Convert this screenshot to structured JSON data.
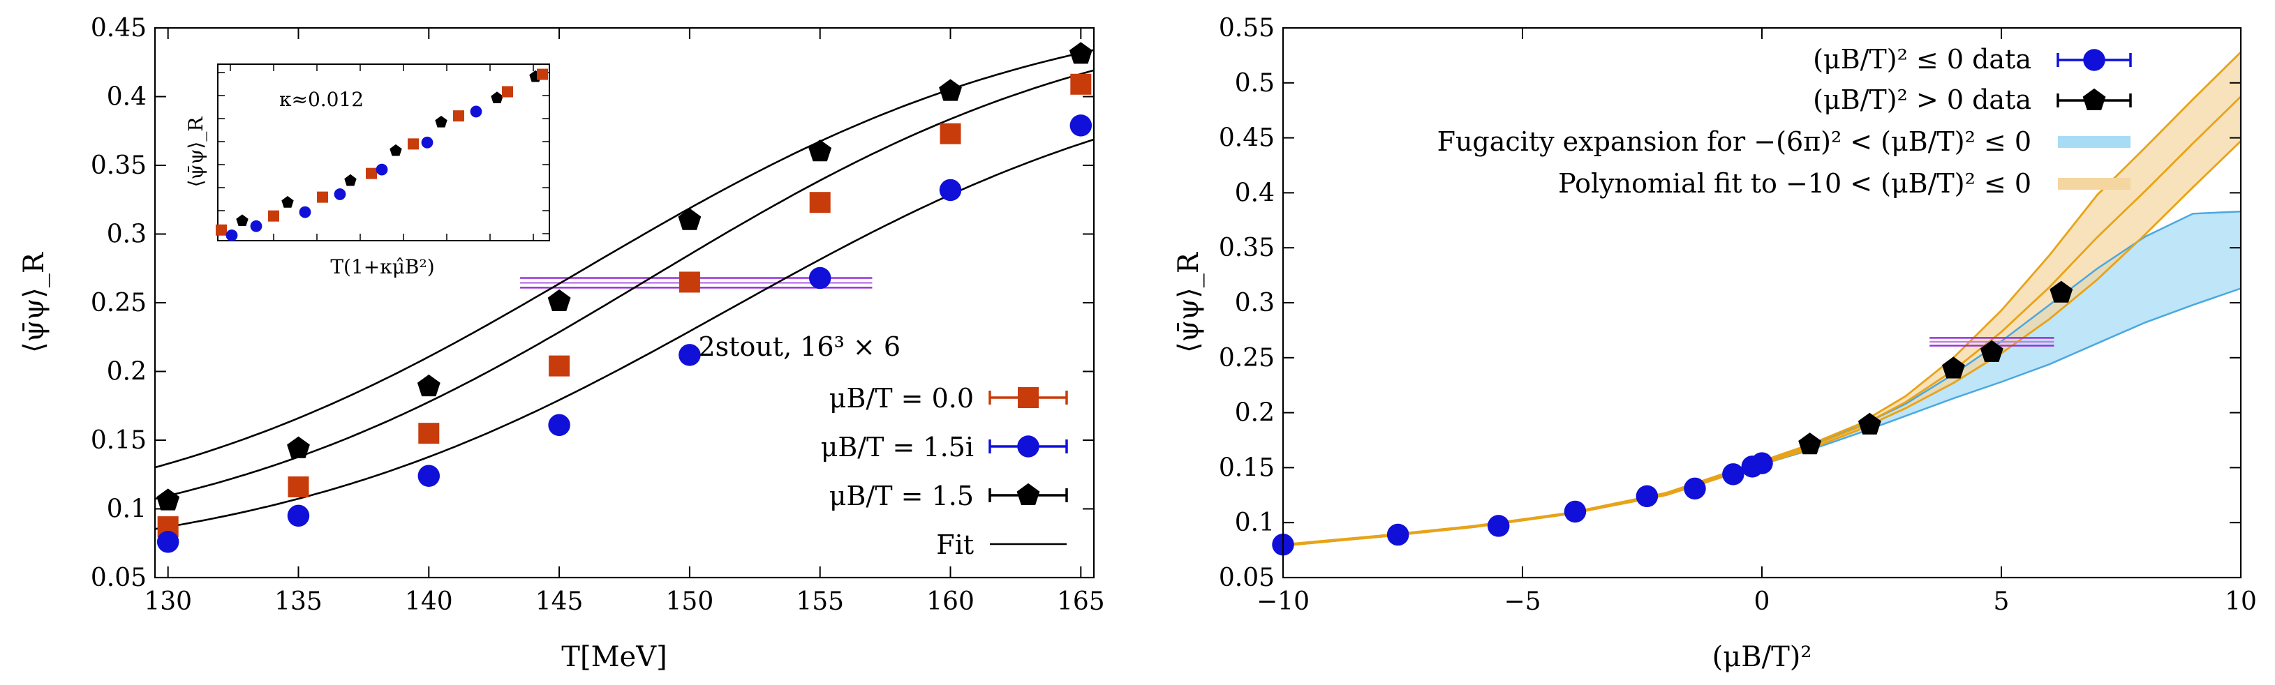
{
  "colors": {
    "orange": "#c83c0c",
    "blue": "#1010d8",
    "black": "#000000",
    "purple": "#9b30d9",
    "fit_line": "#000000",
    "gold": "#e8a317",
    "band_orange": "#f5d6a0",
    "band_blue": "#a8dcf5",
    "line_blue": "#4aa8e0"
  },
  "chart_data": [
    {
      "type": "line",
      "panel": "left",
      "xlabel": "T[MeV]",
      "ylabel": "⟨ψ̄ψ⟩_R",
      "xlim": [
        129.5,
        165.5
      ],
      "ylim": [
        0.05,
        0.45
      ],
      "xticks": [
        130,
        135,
        140,
        145,
        150,
        155,
        160,
        165
      ],
      "xtick_labels": [
        "130",
        "135",
        "140",
        "145",
        "150",
        "155",
        "160",
        "165"
      ],
      "yticks": [
        0.05,
        0.1,
        0.15,
        0.2,
        0.25,
        0.3,
        0.35,
        0.4,
        0.45
      ],
      "ytick_labels": [
        "0.05",
        "0.1",
        "0.15",
        "0.2",
        "0.25",
        "0.3",
        "0.35",
        "0.4",
        "0.45"
      ],
      "legend_title": "2stout, 16³ × 6",
      "legend_position": "right",
      "series": [
        {
          "name": "μB/T = 0.0",
          "marker": "square",
          "color": "orange",
          "x": [
            130,
            135,
            140,
            145,
            150,
            155,
            160,
            165
          ],
          "y": [
            0.087,
            0.116,
            0.155,
            0.204,
            0.265,
            0.323,
            0.373,
            0.409
          ]
        },
        {
          "name": "μB/T = 1.5i",
          "marker": "circle",
          "color": "blue",
          "x": [
            130,
            135,
            140,
            145,
            150,
            155,
            160,
            165
          ],
          "y": [
            0.076,
            0.095,
            0.124,
            0.161,
            0.212,
            0.268,
            0.332,
            0.379
          ]
        },
        {
          "name": "μB/T = 1.5",
          "marker": "pentagon",
          "color": "black",
          "x": [
            130,
            135,
            140,
            145,
            150,
            155,
            160,
            165
          ],
          "y": [
            0.106,
            0.144,
            0.189,
            0.251,
            0.31,
            0.36,
            0.404,
            0.431
          ]
        },
        {
          "name": "Fit",
          "marker": "line",
          "color": "black"
        }
      ],
      "fits": [
        {
          "A": 0.063,
          "B": 0.41,
          "T0": 148.5,
          "w": 9.0
        },
        {
          "A": 0.055,
          "B": 0.38,
          "T0": 151.5,
          "w": 9.0
        },
        {
          "A": 0.075,
          "B": 0.4,
          "T0": 146.0,
          "w": 9.0
        }
      ],
      "ref_band": {
        "xmin": 143.5,
        "xmax": 157.0,
        "ylo": 0.261,
        "yhi": 0.268
      },
      "inset": {
        "xlabel": "T(1+κμ̂B²)",
        "ylabel": "⟨ψ̄ψ⟩_R",
        "annotation": "κ≈0.012",
        "x": [
          0.0,
          0.3,
          0.6,
          1.0,
          1.5,
          1.9,
          2.4,
          2.9,
          3.4,
          3.7,
          4.3,
          4.6,
          5.0,
          5.5,
          5.9,
          6.3,
          6.8,
          7.3,
          7.9,
          8.2,
          9.0,
          9.2
        ],
        "y": [
          0.087,
          0.076,
          0.106,
          0.095,
          0.116,
          0.144,
          0.124,
          0.155,
          0.161,
          0.189,
          0.204,
          0.212,
          0.251,
          0.265,
          0.268,
          0.31,
          0.323,
          0.332,
          0.36,
          0.373,
          0.404,
          0.409
        ],
        "kind": [
          "square",
          "circle",
          "pentagon",
          "circle",
          "square",
          "pentagon",
          "circle",
          "square",
          "circle",
          "pentagon",
          "square",
          "circle",
          "pentagon",
          "square",
          "circle",
          "pentagon",
          "square",
          "circle",
          "pentagon",
          "square",
          "pentagon",
          "square"
        ]
      }
    },
    {
      "type": "line",
      "panel": "right",
      "xlabel": "(μB/T)²",
      "ylabel": "⟨ψ̄ψ⟩_R",
      "xlim": [
        -10,
        10
      ],
      "ylim": [
        0.05,
        0.55
      ],
      "xticks": [
        -10,
        -5,
        0,
        5,
        10
      ],
      "xtick_labels": [
        "−10",
        "−5",
        "0",
        "5",
        "10"
      ],
      "yticks": [
        0.05,
        0.1,
        0.15,
        0.2,
        0.25,
        0.3,
        0.35,
        0.4,
        0.45,
        0.5,
        0.55
      ],
      "ytick_labels": [
        "0.05",
        "0.1",
        "0.15",
        "0.2",
        "0.25",
        "0.3",
        "0.35",
        "0.4",
        "0.45",
        "0.5",
        "0.55"
      ],
      "legend_position": "top-right",
      "series": [
        {
          "name": "(μB/T)² ≤ 0 data",
          "marker": "circle",
          "color": "blue",
          "x": [
            -10.0,
            -7.6,
            -5.5,
            -3.9,
            -2.4,
            -1.4,
            -0.6,
            -0.2,
            0.0
          ],
          "y": [
            0.08,
            0.089,
            0.097,
            0.11,
            0.124,
            0.131,
            0.144,
            0.151,
            0.154
          ]
        },
        {
          "name": "(μB/T)² > 0 data",
          "marker": "pentagon",
          "color": "black",
          "x": [
            1.0,
            2.25,
            4.0,
            4.8,
            6.25
          ],
          "y": [
            0.171,
            0.189,
            0.24,
            0.255,
            0.309
          ]
        },
        {
          "name": "Fugacity expansion for −(6π)² < (μB/T)² ≤ 0",
          "marker": "band",
          "color": "band_blue"
        },
        {
          "name": "Polynomial fit to −10 < (μB/T)² ≤ 0",
          "marker": "band",
          "color": "band_orange"
        }
      ],
      "bands": {
        "x": [
          -10,
          -8,
          -6,
          -4,
          -2,
          0,
          1,
          2,
          3,
          4,
          5,
          6,
          7,
          8,
          9,
          10
        ],
        "orange_lo": [
          0.079,
          0.087,
          0.096,
          0.108,
          0.125,
          0.153,
          0.167,
          0.184,
          0.204,
          0.227,
          0.254,
          0.285,
          0.321,
          0.362,
          0.405,
          0.447
        ],
        "orange_hi": [
          0.08,
          0.088,
          0.097,
          0.109,
          0.127,
          0.156,
          0.171,
          0.189,
          0.215,
          0.25,
          0.293,
          0.343,
          0.398,
          0.441,
          0.485,
          0.528
        ],
        "orange_mid": [
          0.0795,
          0.0875,
          0.0965,
          0.1085,
          0.126,
          0.1545,
          0.169,
          0.1865,
          0.2095,
          0.2385,
          0.2735,
          0.314,
          0.3595,
          0.4015,
          0.445,
          0.4875
        ],
        "blue_lo": [
          0.079,
          0.087,
          0.096,
          0.108,
          0.125,
          0.153,
          0.166,
          0.181,
          0.197,
          0.213,
          0.228,
          0.244,
          0.263,
          0.282,
          0.298,
          0.313
        ],
        "blue_hi": [
          0.08,
          0.088,
          0.097,
          0.109,
          0.127,
          0.156,
          0.17,
          0.187,
          0.208,
          0.235,
          0.265,
          0.298,
          0.331,
          0.36,
          0.381,
          0.383
        ]
      },
      "ref_band": {
        "xmin": 3.5,
        "xmax": 6.1,
        "ylo": 0.261,
        "yhi": 0.268
      }
    }
  ]
}
